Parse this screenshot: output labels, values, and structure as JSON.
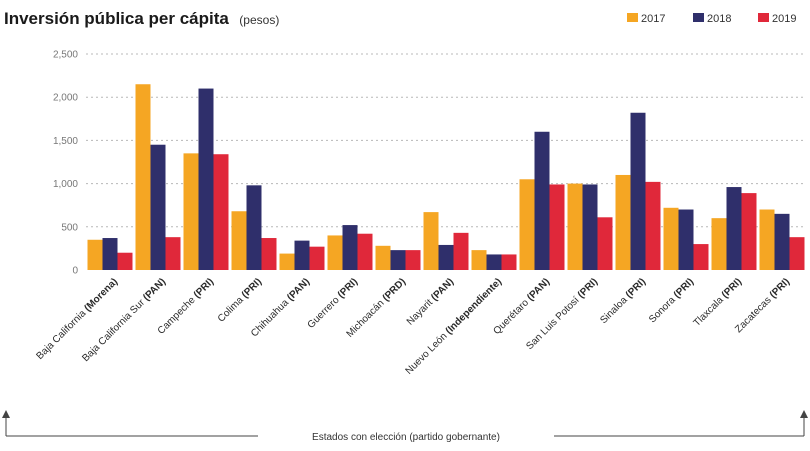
{
  "chart_data": {
    "type": "bar",
    "title": "Inversión pública per cápita",
    "title_unit": "(pesos)",
    "xlabel": "Estados con elección (partido gobernante)",
    "ylabel": "",
    "ylim": [
      0,
      2500
    ],
    "yticks": [
      0,
      500,
      1000,
      1500,
      2000,
      2500
    ],
    "ytick_labels": [
      "0",
      "500",
      "1,000",
      "1,500",
      "2,000",
      "2,500"
    ],
    "grid": true,
    "legend_position": "top-right",
    "categories": [
      {
        "name": "Baja California",
        "party": "(Morena)"
      },
      {
        "name": "Baja California Sur",
        "party": "(PAN)"
      },
      {
        "name": "Campeche",
        "party": "(PRI)"
      },
      {
        "name": "Colima",
        "party": "(PRI)"
      },
      {
        "name": "Chihuahua",
        "party": "(PAN)"
      },
      {
        "name": "Guerrero",
        "party": "(PRI)"
      },
      {
        "name": "Michoacán",
        "party": "(PRD)"
      },
      {
        "name": "Nayarit",
        "party": "(PAN)"
      },
      {
        "name": "Nuevo León",
        "party": "(Independiente)"
      },
      {
        "name": "Querétaro",
        "party": "(PAN)"
      },
      {
        "name": "San Luis Potosí",
        "party": "(PRI)"
      },
      {
        "name": "Sinaloa",
        "party": "(PRI)"
      },
      {
        "name": "Sonora",
        "party": "(PRI)"
      },
      {
        "name": "Tlaxcala",
        "party": "(PRI)"
      },
      {
        "name": "Zacatecas",
        "party": "(PRI)"
      }
    ],
    "series": [
      {
        "name": "2017",
        "color": "#f5a623",
        "values": [
          350,
          2150,
          1350,
          680,
          190,
          400,
          280,
          670,
          230,
          1050,
          1000,
          1100,
          720,
          600,
          700
        ],
        "labels": [
          "",
          "",
          "",
          "",
          "",
          "",
          "",
          "",
          "",
          "",
          "",
          "",
          "",
          "",
          ""
        ]
      },
      {
        "name": "2018",
        "color": "#2f2f6b",
        "values": [
          370,
          1450,
          2100,
          980,
          340,
          520,
          230,
          290,
          180,
          1600,
          990,
          1820,
          700,
          960,
          650
        ],
        "labels": [
          "",
          "",
          "",
          "",
          "",
          "",
          "",
          "",
          "",
          "",
          "",
          "",
          "",
          "",
          ""
        ]
      },
      {
        "name": "2019",
        "color": "#e0283a",
        "values": [
          200,
          380,
          1340,
          370,
          270,
          420,
          230,
          430,
          180,
          990,
          610,
          1020,
          300,
          890,
          380
        ],
        "labels": [
          "",
          "",
          "",
          "",
          "",
          "",
          "",
          "",
          "",
          "",
          "",
          "",
          "",
          "",
          ""
        ]
      }
    ]
  }
}
